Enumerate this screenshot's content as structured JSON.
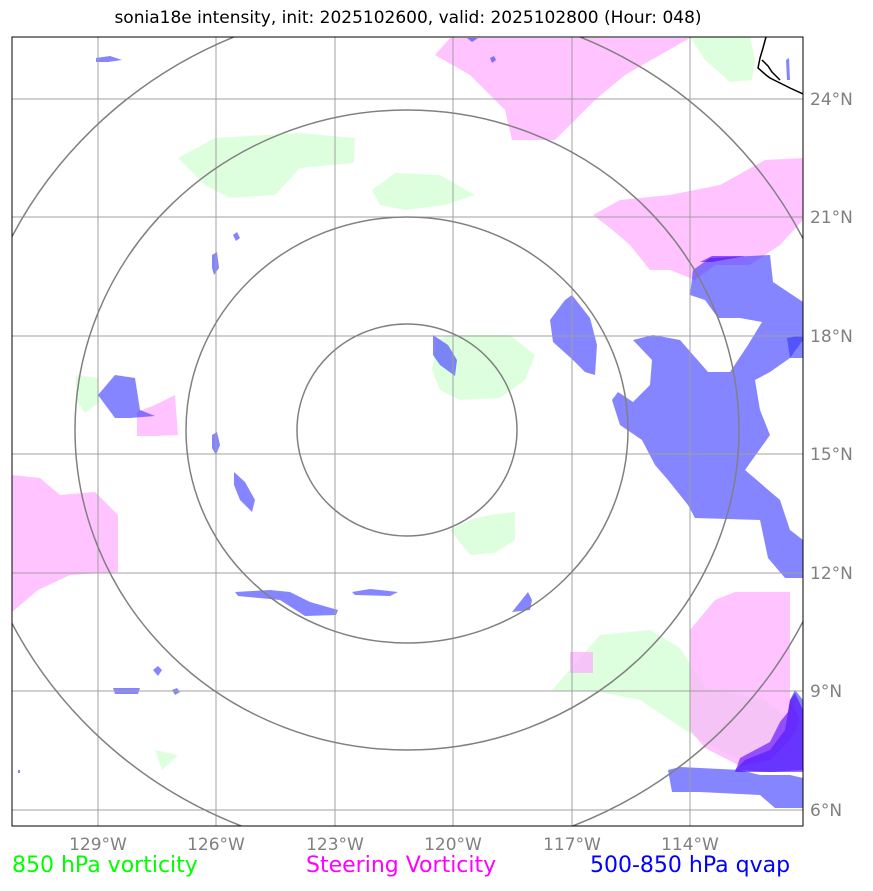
{
  "title": "sonia18e intensity, init: 2025102600, valid: 2025102800 (Hour: 048)",
  "axes": {
    "longitude_ticks": [
      "129°W",
      "126°W",
      "123°W",
      "120°W",
      "117°W",
      "114°W"
    ],
    "latitude_ticks": [
      "24°N",
      "21°N",
      "18°N",
      "15°N",
      "12°N",
      "9°N",
      "6°N"
    ]
  },
  "legend": {
    "vorticity_850": "850 hPa vorticity",
    "steering_vorticity": "Steering Vorticity",
    "qvap_500_850": "500-850 hPa qvap"
  },
  "colors": {
    "vorticity_850": "#00ff00",
    "steering_vorticity": "#ff00ff",
    "qvap_500_850": "#0000ff",
    "grid": "#a0a0a0",
    "range_rings": "#808080"
  },
  "range_ring_count": 4
}
